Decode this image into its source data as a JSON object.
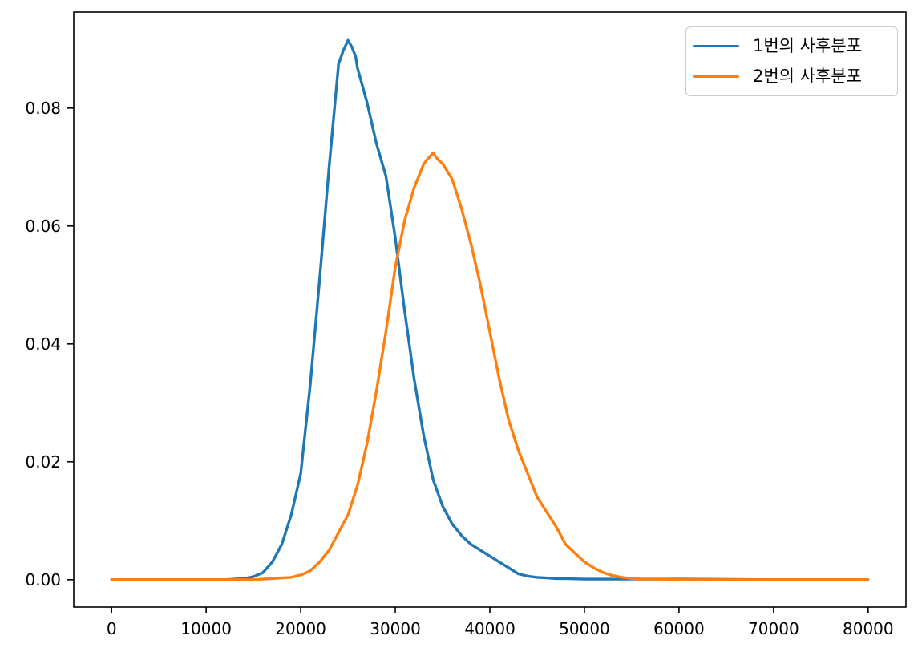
{
  "figure": {
    "background": "#ffffff",
    "frame_color": "#000000"
  },
  "chart_data": {
    "type": "line",
    "title": "",
    "xlabel": "",
    "ylabel": "",
    "grid": false,
    "xlim": [
      -4000,
      84000
    ],
    "ylim": [
      -0.00465,
      0.0963
    ],
    "xtick_values": [
      0,
      10000,
      20000,
      30000,
      40000,
      50000,
      60000,
      70000,
      80000
    ],
    "xtick_labels": [
      "0",
      "10000",
      "20000",
      "30000",
      "40000",
      "50000",
      "60000",
      "70000",
      "80000"
    ],
    "ytick_values": [
      0.0,
      0.02,
      0.04,
      0.06,
      0.08
    ],
    "ytick_labels": [
      "0.00",
      "0.02",
      "0.04",
      "0.06",
      "0.08"
    ],
    "line_width": 3.4,
    "legend": {
      "position": "upper right",
      "entries": [
        "1번의 사후분포",
        "2번의 사후분포"
      ]
    },
    "series": [
      {
        "name": "1번의 사후분포",
        "color": "#1f77b4",
        "points": [
          [
            0,
            0
          ],
          [
            4000,
            0
          ],
          [
            8000,
            0
          ],
          [
            11000,
            0
          ],
          [
            12000,
            0
          ],
          [
            13000,
            0.0001
          ],
          [
            14000,
            0.0002
          ],
          [
            15000,
            0.0005
          ],
          [
            16000,
            0.0012
          ],
          [
            17000,
            0.003
          ],
          [
            18000,
            0.006
          ],
          [
            19000,
            0.011
          ],
          [
            20000,
            0.018
          ],
          [
            21000,
            0.033
          ],
          [
            22000,
            0.051
          ],
          [
            23000,
            0.07
          ],
          [
            24000,
            0.0875
          ],
          [
            24500,
            0.0898
          ],
          [
            25000,
            0.0915
          ],
          [
            25400,
            0.0904
          ],
          [
            25800,
            0.0888
          ],
          [
            26000,
            0.0868
          ],
          [
            27000,
            0.081
          ],
          [
            28000,
            0.074
          ],
          [
            29000,
            0.0685
          ],
          [
            30000,
            0.058
          ],
          [
            31000,
            0.0455
          ],
          [
            32000,
            0.034
          ],
          [
            33000,
            0.0245
          ],
          [
            34000,
            0.017
          ],
          [
            35000,
            0.0125
          ],
          [
            36000,
            0.0095
          ],
          [
            37000,
            0.0075
          ],
          [
            38000,
            0.006
          ],
          [
            39000,
            0.005
          ],
          [
            40000,
            0.004
          ],
          [
            41000,
            0.003
          ],
          [
            42000,
            0.002
          ],
          [
            43000,
            0.001
          ],
          [
            44000,
            0.0006
          ],
          [
            45000,
            0.0004
          ],
          [
            46000,
            0.0003
          ],
          [
            47000,
            0.0002
          ],
          [
            48000,
            0.0002
          ],
          [
            50000,
            0.0001
          ],
          [
            55000,
            0.0001
          ],
          [
            60000,
            0.0001
          ],
          [
            70000,
            0
          ],
          [
            80000,
            0
          ]
        ]
      },
      {
        "name": "2번의 사후분포",
        "color": "#ff7f0e",
        "points": [
          [
            0,
            0
          ],
          [
            4000,
            0
          ],
          [
            8000,
            0
          ],
          [
            12000,
            0
          ],
          [
            14000,
            0
          ],
          [
            15000,
            0
          ],
          [
            16000,
            0.0001
          ],
          [
            17000,
            0.0002
          ],
          [
            18000,
            0.0003
          ],
          [
            19000,
            0.0004
          ],
          [
            20000,
            0.0008
          ],
          [
            21000,
            0.0015
          ],
          [
            22000,
            0.003
          ],
          [
            23000,
            0.005
          ],
          [
            24000,
            0.008
          ],
          [
            25000,
            0.011
          ],
          [
            26000,
            0.016
          ],
          [
            27000,
            0.023
          ],
          [
            28000,
            0.032
          ],
          [
            29000,
            0.042
          ],
          [
            30000,
            0.053
          ],
          [
            31000,
            0.061
          ],
          [
            32000,
            0.0665
          ],
          [
            33000,
            0.0705
          ],
          [
            33500,
            0.0715
          ],
          [
            34000,
            0.0724
          ],
          [
            34500,
            0.0713
          ],
          [
            35000,
            0.0706
          ],
          [
            36000,
            0.068
          ],
          [
            37000,
            0.063
          ],
          [
            38000,
            0.057
          ],
          [
            39000,
            0.05
          ],
          [
            40000,
            0.042
          ],
          [
            41000,
            0.034
          ],
          [
            42000,
            0.027
          ],
          [
            43000,
            0.022
          ],
          [
            44000,
            0.018
          ],
          [
            45000,
            0.014
          ],
          [
            46000,
            0.0115
          ],
          [
            47000,
            0.009
          ],
          [
            48000,
            0.006
          ],
          [
            49000,
            0.0045
          ],
          [
            50000,
            0.003
          ],
          [
            51000,
            0.002
          ],
          [
            52000,
            0.0012
          ],
          [
            53000,
            0.0007
          ],
          [
            54000,
            0.0004
          ],
          [
            55000,
            0.0002
          ],
          [
            56000,
            0.0001
          ],
          [
            58000,
            0.0001
          ],
          [
            60000,
            0
          ],
          [
            70000,
            0
          ],
          [
            80000,
            0
          ]
        ]
      }
    ]
  }
}
